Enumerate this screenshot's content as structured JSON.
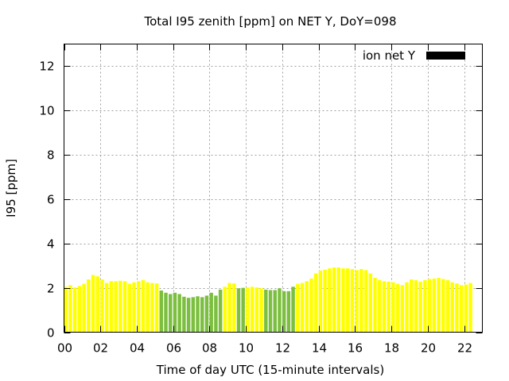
{
  "chart_data": {
    "type": "bar",
    "title": "Total I95 zenith [ppm] on NET Y, DoY=098",
    "xlabel": "Time of day UTC (15-minute intervals)",
    "ylabel": "I95 [ppm]",
    "ylim": [
      0,
      13
    ],
    "yticks": [
      0,
      2,
      4,
      6,
      8,
      10,
      12
    ],
    "xlim": [
      0,
      23
    ],
    "xticks": [
      0,
      2,
      4,
      6,
      8,
      10,
      12,
      14,
      16,
      18,
      20,
      22
    ],
    "xtick_labels": [
      "00",
      "02",
      "04",
      "06",
      "08",
      "10",
      "12",
      "14",
      "16",
      "18",
      "20",
      "22"
    ],
    "grid": true,
    "legend": {
      "label": "ion net Y",
      "color": "#000000",
      "position": "top-right"
    },
    "interval_hours": 0.25,
    "x_start": 0,
    "colors": {
      "y": "#ffff00",
      "g": "#7cbf40"
    },
    "values": [
      2.05,
      2.12,
      2.02,
      2.08,
      2.18,
      2.38,
      2.58,
      2.52,
      2.38,
      2.22,
      2.3,
      2.3,
      2.32,
      2.3,
      2.18,
      2.25,
      2.3,
      2.35,
      2.25,
      2.22,
      2.2,
      1.88,
      1.78,
      1.72,
      1.78,
      1.72,
      1.6,
      1.55,
      1.58,
      1.62,
      1.58,
      1.65,
      1.78,
      1.65,
      1.92,
      2.05,
      2.22,
      2.2,
      1.98,
      2.0,
      2.02,
      2.05,
      2.02,
      1.98,
      1.92,
      1.9,
      1.9,
      1.98,
      1.85,
      1.85,
      2.05,
      2.18,
      2.22,
      2.3,
      2.42,
      2.65,
      2.78,
      2.82,
      2.88,
      2.92,
      2.92,
      2.88,
      2.88,
      2.85,
      2.8,
      2.85,
      2.8,
      2.65,
      2.45,
      2.35,
      2.3,
      2.28,
      2.25,
      2.18,
      2.12,
      2.25,
      2.38,
      2.35,
      2.28,
      2.35,
      2.4,
      2.42,
      2.45,
      2.4,
      2.35,
      2.25,
      2.2,
      2.12,
      2.15,
      2.22
    ],
    "bar_colors": "yyyyyyyyyyyyyyyyyyyyyggggggggggggggyyyggyyyygggggggyyyyyyyyyyyyyyyyyyyyyyyyyyyyyyyyyyyyyy"
  }
}
